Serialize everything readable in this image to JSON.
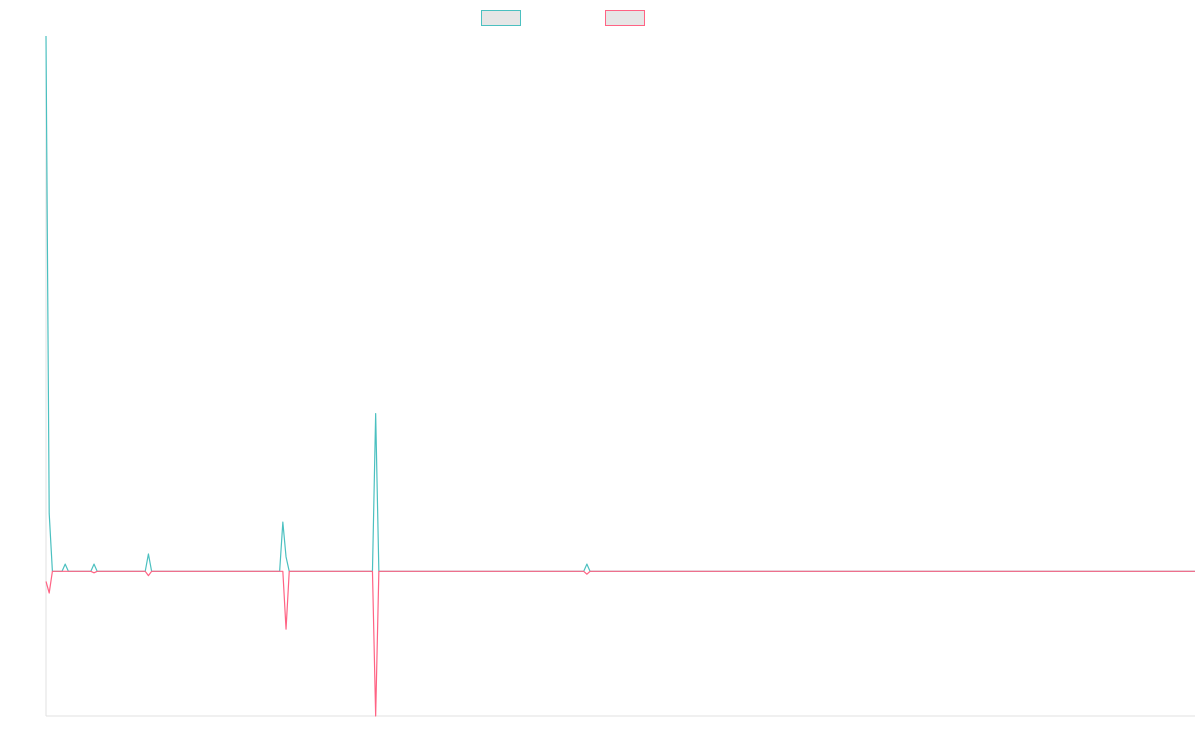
{
  "colors": {
    "series_a": "#4bc0c0",
    "series_b": "#ff6384",
    "legend_fill": "#e6e6e6",
    "axis": "#e0e0e0"
  },
  "legend": {
    "placement": "top-center",
    "items": [
      {
        "color": "#4bc0c0",
        "label": ""
      },
      {
        "color": "#ff6384",
        "label": ""
      }
    ]
  },
  "chart_data": {
    "type": "line",
    "title": "",
    "xlabel": "",
    "ylabel": "",
    "grid": false,
    "x": [
      0,
      1,
      2,
      3,
      4,
      5,
      6,
      7,
      8,
      9,
      10,
      11,
      12,
      13,
      14,
      15,
      16,
      17,
      18,
      19,
      20,
      21,
      22,
      23,
      24,
      25,
      26,
      27,
      28,
      29,
      30,
      31,
      32,
      33,
      34,
      35,
      36,
      37,
      38,
      39,
      40,
      41,
      42,
      43,
      44,
      45,
      46,
      47,
      48,
      49,
      50,
      51,
      52,
      53,
      54,
      55,
      56,
      57,
      58,
      59,
      60,
      61,
      62,
      63,
      64,
      65,
      66,
      67,
      68,
      69,
      70,
      71,
      72,
      73,
      74,
      75,
      76,
      77,
      78,
      79,
      80,
      81,
      82,
      83,
      84,
      85,
      86,
      87,
      88,
      89,
      90,
      91,
      92,
      93,
      94,
      95,
      96,
      97,
      98,
      99,
      100,
      101,
      102,
      103,
      104,
      105,
      106,
      107,
      108,
      109,
      110,
      111,
      112,
      113,
      114,
      115,
      116,
      117,
      118,
      119,
      120,
      121,
      122,
      123,
      124,
      125,
      126,
      127,
      128,
      129,
      130,
      131,
      132,
      133,
      134,
      135,
      136,
      137,
      138,
      139,
      140,
      141,
      142,
      143,
      144,
      145,
      146,
      147,
      148,
      149,
      150,
      151,
      152,
      153,
      154,
      155,
      156,
      157,
      158,
      159,
      160,
      161,
      162,
      163,
      164,
      165,
      166,
      167,
      168,
      169,
      170,
      171,
      172,
      173,
      174,
      175,
      176,
      177,
      178,
      179,
      180,
      181,
      182,
      183,
      184,
      185,
      186,
      187,
      188,
      189,
      190,
      191,
      192,
      193,
      194,
      195,
      196,
      197,
      198,
      199,
      200,
      201,
      202,
      203,
      204,
      205,
      206,
      207,
      208,
      209,
      210,
      211,
      212,
      213,
      214,
      215,
      216,
      217,
      218,
      219,
      220,
      221,
      222,
      223,
      224,
      225,
      226,
      227,
      228,
      229,
      230,
      231,
      232,
      233,
      234,
      235,
      236,
      237,
      238,
      239,
      240,
      241,
      242,
      243,
      244,
      245,
      246,
      247,
      248,
      249,
      250,
      251,
      252,
      253,
      254,
      255,
      256,
      257,
      258,
      259,
      260,
      261,
      262,
      263,
      264,
      265,
      266,
      267,
      268,
      269,
      270,
      271,
      272,
      273,
      274,
      275,
      276,
      277,
      278,
      279,
      280,
      281,
      282,
      283,
      284,
      285,
      286,
      287,
      288,
      289,
      290,
      291,
      292,
      293,
      294,
      295,
      296,
      297,
      298,
      299,
      300,
      301,
      302,
      303,
      304,
      305,
      306,
      307,
      308,
      309,
      310,
      311,
      312,
      313,
      314,
      315,
      316,
      317,
      318,
      319,
      320,
      321,
      322,
      323,
      324,
      325,
      326,
      327,
      328,
      329,
      330,
      331,
      332,
      333,
      334,
      335,
      336,
      337,
      338,
      339,
      340,
      341,
      342,
      343,
      344,
      345,
      346,
      347,
      348,
      349,
      350,
      351,
      352,
      353,
      354,
      355,
      356,
      357,
      358,
      359
    ],
    "xlim": [
      0,
      359
    ],
    "ylim": [
      -100,
      370
    ],
    "series": [
      {
        "color": "#4bc0c0",
        "points": [
          [
            0,
            370
          ],
          [
            1,
            40
          ],
          [
            2,
            0
          ],
          [
            5,
            0
          ],
          [
            6,
            5
          ],
          [
            7,
            0
          ],
          [
            14,
            0
          ],
          [
            15,
            5
          ],
          [
            16,
            0
          ],
          [
            31,
            0
          ],
          [
            32,
            12
          ],
          [
            33,
            0
          ],
          [
            73,
            0
          ],
          [
            74,
            34
          ],
          [
            75,
            10
          ],
          [
            76,
            0
          ],
          [
            102,
            0
          ],
          [
            103,
            109
          ],
          [
            104,
            0
          ],
          [
            168,
            0
          ],
          [
            169,
            5
          ],
          [
            170,
            0
          ],
          [
            359,
            0
          ]
        ]
      },
      {
        "color": "#ff6384",
        "points": [
          [
            0,
            -7
          ],
          [
            1,
            -15
          ],
          [
            2,
            0
          ],
          [
            14,
            0
          ],
          [
            15,
            -1
          ],
          [
            16,
            0
          ],
          [
            31,
            0
          ],
          [
            32,
            -3
          ],
          [
            33,
            0
          ],
          [
            74,
            0
          ],
          [
            75,
            -40
          ],
          [
            76,
            0
          ],
          [
            102,
            0
          ],
          [
            103,
            -100
          ],
          [
            104,
            0
          ],
          [
            168,
            0
          ],
          [
            169,
            -2
          ],
          [
            170,
            0
          ],
          [
            359,
            0
          ]
        ]
      }
    ]
  }
}
